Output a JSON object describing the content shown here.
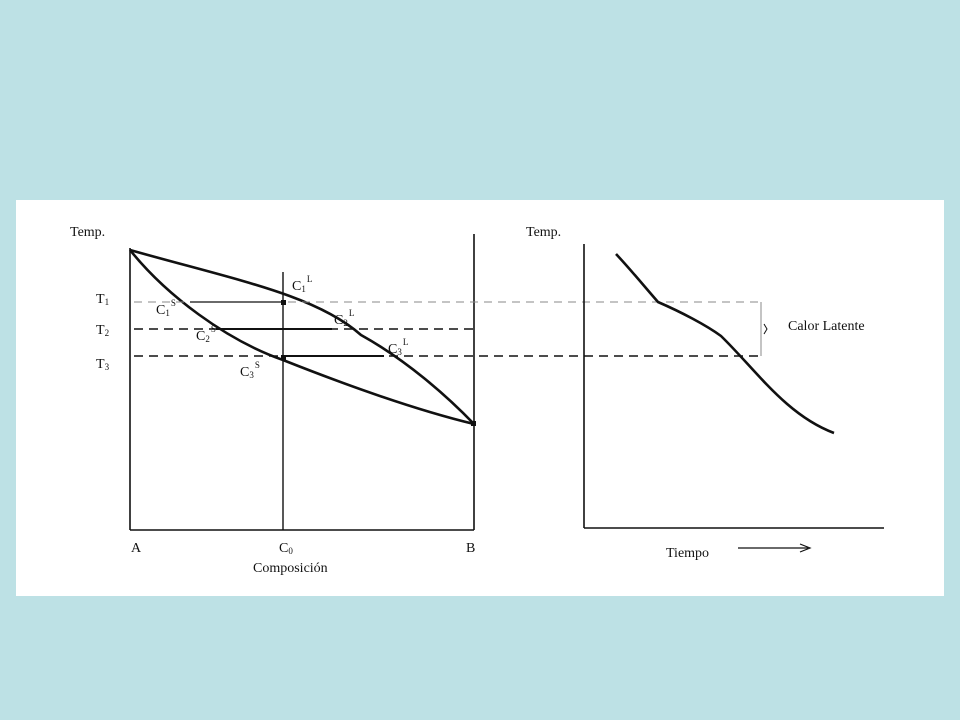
{
  "colors": {
    "background": "#bde1e5",
    "panel": "#ffffff",
    "ink": "#111111",
    "dashed": "#888888"
  },
  "phase_diagram": {
    "y_axis_label": "Temp.",
    "x_axis_label": "Composición",
    "left_end_label": "A",
    "right_end_label": "B",
    "composition_label": "C",
    "composition_subscript": "0",
    "temperatures": [
      {
        "label": "T",
        "sub": "1"
      },
      {
        "label": "T",
        "sub": "2"
      },
      {
        "label": "T",
        "sub": "3"
      }
    ],
    "liquid_points": [
      {
        "label": "C",
        "sub": "1",
        "sup": "L"
      },
      {
        "label": "C",
        "sub": "2",
        "sup": "L"
      },
      {
        "label": "C",
        "sub": "3",
        "sup": "L"
      }
    ],
    "solid_points": [
      {
        "label": "C",
        "sub": "1",
        "sup": "S"
      },
      {
        "label": "C",
        "sub": "2",
        "sup": "S"
      },
      {
        "label": "C",
        "sub": "3",
        "sup": "S"
      }
    ]
  },
  "cooling_curve": {
    "y_axis_label": "Temp.",
    "x_axis_label": "Tiempo",
    "latent_heat_label": "Calor Latente"
  }
}
